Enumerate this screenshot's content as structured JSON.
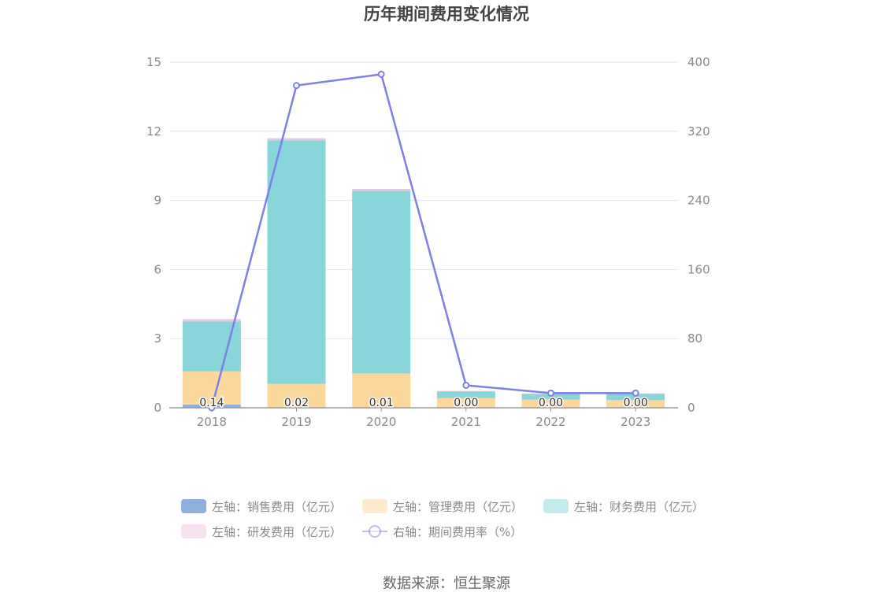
{
  "chart_data": {
    "type": "bar",
    "title": "历年期间费用变化情况",
    "source": "数据来源：恒生聚源",
    "categories": [
      "2018",
      "2019",
      "2020",
      "2021",
      "2022",
      "2023"
    ],
    "left_axis": {
      "ylim": [
        0,
        15
      ],
      "ticks": [
        "0",
        "3",
        "6",
        "9",
        "12",
        "15"
      ]
    },
    "right_axis": {
      "ylim": [
        0,
        400
      ],
      "ticks": [
        "0",
        "80",
        "160",
        "240",
        "320",
        "400"
      ]
    },
    "series": [
      {
        "name": "左轴：销售费用（亿元）",
        "type": "bar",
        "axis": "left",
        "color": "#8fb0dc",
        "values": [
          0.14,
          0.02,
          0.01,
          0.0,
          0.0,
          0.0
        ]
      },
      {
        "name": "左轴：管理费用（亿元）",
        "type": "bar",
        "axis": "left",
        "color": "#fdd89c",
        "values": [
          1.44,
          1.02,
          1.48,
          0.42,
          0.36,
          0.33
        ]
      },
      {
        "name": "左轴：财务费用（亿元）",
        "type": "bar",
        "axis": "left",
        "color": "#88d5da",
        "values": [
          2.17,
          10.57,
          7.93,
          0.28,
          0.24,
          0.27
        ]
      },
      {
        "name": "左轴：研发费用（亿元）",
        "type": "bar",
        "axis": "left",
        "color": "#efc6e2",
        "values": [
          0.1,
          0.09,
          0.08,
          0.03,
          0.02,
          0.03
        ]
      },
      {
        "name": "右轴：期间费用率（%）",
        "type": "line",
        "axis": "right",
        "color": "#7f7fe8",
        "values": [
          0,
          373,
          386,
          26,
          17,
          17
        ]
      }
    ],
    "data_labels": [
      "0.14",
      "0.02",
      "0.01",
      "0.00",
      "0.00",
      "0.00"
    ],
    "legend_placement": "bottom",
    "grid": true
  }
}
